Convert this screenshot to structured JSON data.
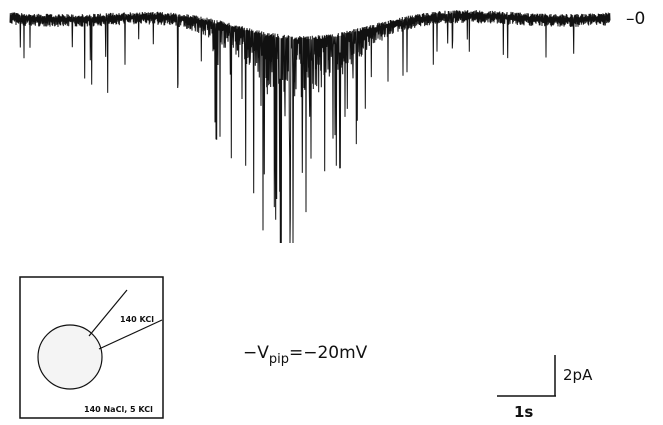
{
  "trace": {
    "zero_label": "–0"
  },
  "inset": {
    "pipette_label": "140 KCl",
    "bath_label": "140 NaCl, 5 KCl"
  },
  "voltage": {
    "prefix": "−V",
    "subscript": "pip",
    "suffix": "=−20mV"
  },
  "scale_bar": {
    "current": "2pA",
    "time": "1s"
  }
}
